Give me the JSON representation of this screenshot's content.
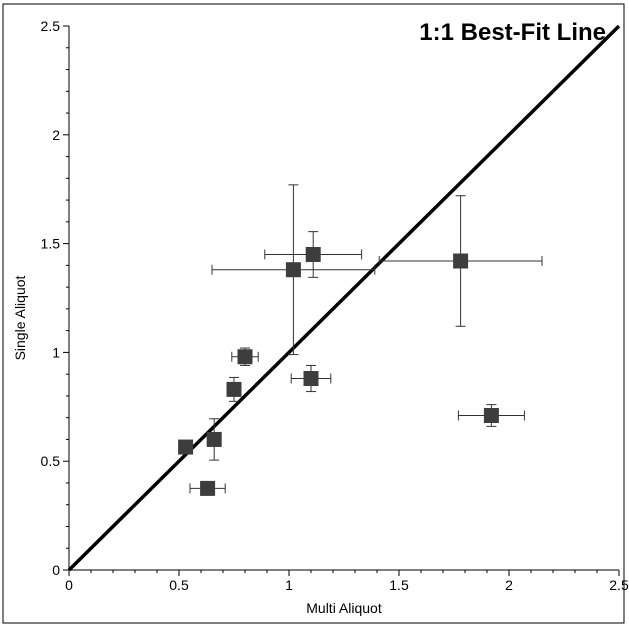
{
  "chart_data": {
    "type": "scatter",
    "title": "1:1 Best-Fit Line",
    "xlabel": "Multi Aliquot",
    "ylabel": "Single Aliquot",
    "xlim": [
      0,
      2.5
    ],
    "ylim": [
      0,
      2.5
    ],
    "xticks": [
      "0",
      "0.5",
      "1",
      "1.5",
      "2",
      "2.5"
    ],
    "yticks": [
      "0",
      "0.5",
      "1",
      "1.5",
      "2",
      "2.5"
    ],
    "grid": false,
    "reference_line": {
      "name": "1:1",
      "x": [
        0,
        2.5
      ],
      "y": [
        0,
        2.5
      ]
    },
    "marker_color": "#3d3d3d",
    "points": [
      {
        "x": 0.53,
        "y": 0.565,
        "xerr": 0.02,
        "yerr": 0.02
      },
      {
        "x": 0.63,
        "y": 0.375,
        "xerr": 0.08,
        "yerr": 0.0
      },
      {
        "x": 0.66,
        "y": 0.6,
        "xerr": 0.0,
        "yerr": 0.095
      },
      {
        "x": 0.75,
        "y": 0.83,
        "xerr": 0.03,
        "yerr": 0.055
      },
      {
        "x": 0.8,
        "y": 0.98,
        "xerr": 0.06,
        "yerr": 0.04
      },
      {
        "x": 1.02,
        "y": 1.38,
        "xerr": 0.37,
        "yerr": 0.39
      },
      {
        "x": 1.1,
        "y": 0.88,
        "xerr": 0.09,
        "yerr": 0.06
      },
      {
        "x": 1.11,
        "y": 1.45,
        "xerr": 0.22,
        "yerr": 0.105
      },
      {
        "x": 1.78,
        "y": 1.42,
        "xerr": 0.37,
        "yerr": 0.3
      },
      {
        "x": 1.92,
        "y": 0.71,
        "xerr": 0.15,
        "yerr": 0.05
      }
    ]
  }
}
